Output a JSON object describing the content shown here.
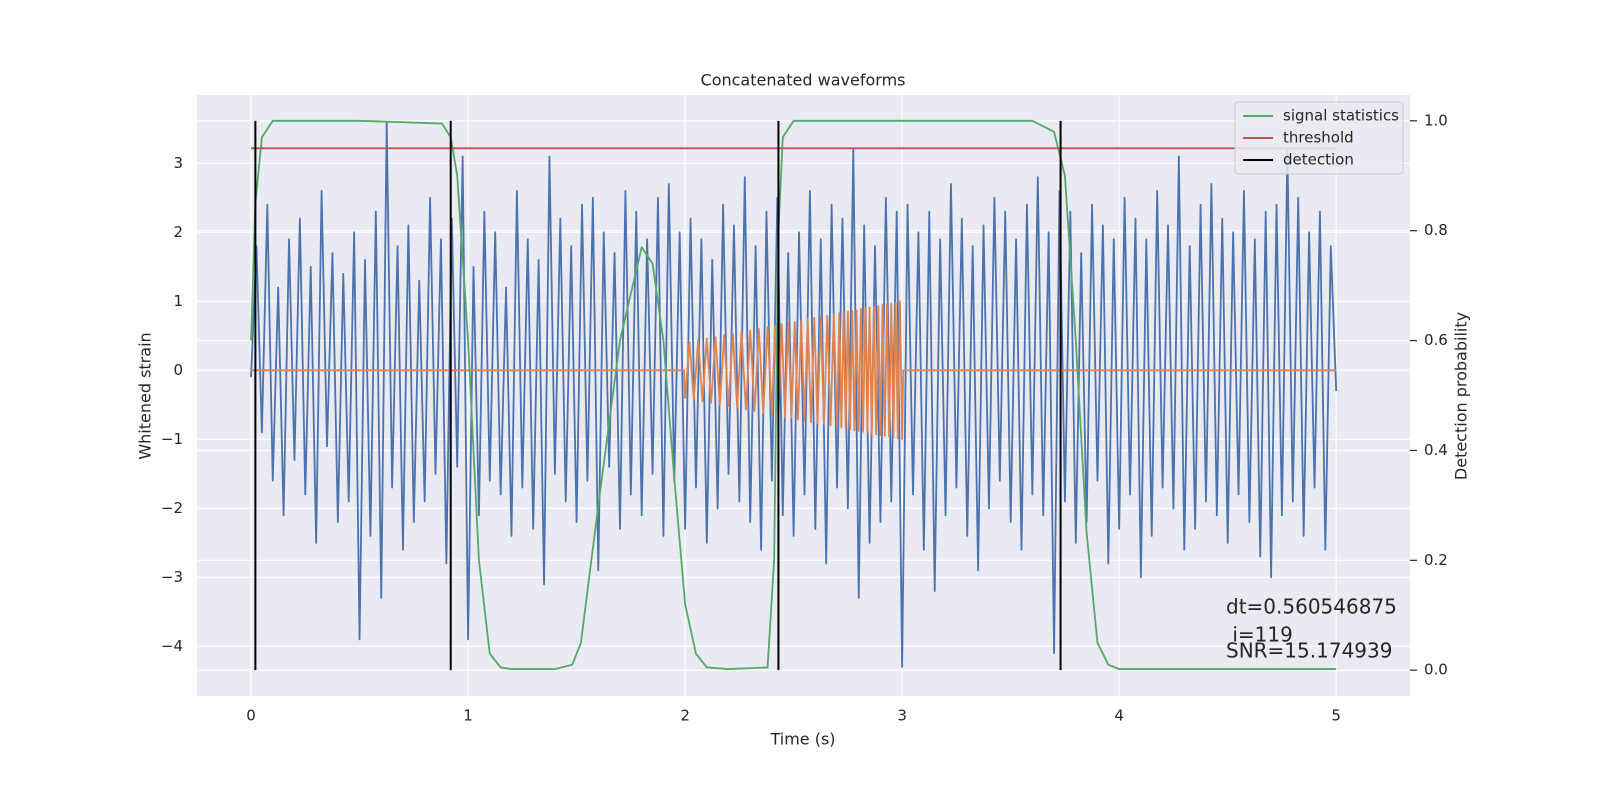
{
  "chart_data": {
    "type": "line",
    "title": "Concatenated waveforms",
    "xlabel": "Time (s)",
    "ylabel": "Whitened strain",
    "y2label": "Detection probability",
    "xlim": [
      -0.249,
      5.34
    ],
    "ylim": [
      -4.72,
      3.99
    ],
    "y2lim": [
      -0.047,
      1.047
    ],
    "xticks": [
      0,
      1,
      2,
      3,
      4,
      5
    ],
    "yticks": [
      {
        "value": -4,
        "label": "−4"
      },
      {
        "value": -3,
        "label": "−3"
      },
      {
        "value": -2,
        "label": "−2"
      },
      {
        "value": -1,
        "label": "−1"
      },
      0,
      1,
      2,
      3
    ],
    "y2ticks": [
      {
        "value": 0,
        "label": "0.0"
      },
      {
        "value": 0.2,
        "label": "0.2"
      },
      {
        "value": 0.4,
        "label": "0.4"
      },
      {
        "value": 0.6,
        "label": "0.6"
      },
      {
        "value": 0.8,
        "label": "0.8"
      },
      {
        "value": 1,
        "label": "1.0"
      }
    ],
    "grid": true,
    "legend": "upper right",
    "background": "#eaeaf2",
    "annotation_lines": [
      "dt=0.560546875",
      " i=119",
      "SNR=15.174939"
    ],
    "series": [
      {
        "color": "#4c72b0",
        "x": [
          0,
          0.025,
          0.05,
          0.075,
          0.1,
          0.125,
          0.15,
          0.175,
          0.2,
          0.225,
          0.25,
          0.275,
          0.3,
          0.325,
          0.35,
          0.375,
          0.4,
          0.425,
          0.45,
          0.475,
          0.5,
          0.525,
          0.55,
          0.575,
          0.6,
          0.625,
          0.65,
          0.675,
          0.7,
          0.725,
          0.75,
          0.775,
          0.8,
          0.825,
          0.85,
          0.875,
          0.9,
          0.925,
          0.95,
          0.975,
          1,
          1.025,
          1.05,
          1.075,
          1.1,
          1.125,
          1.15,
          1.175,
          1.2,
          1.225,
          1.25,
          1.275,
          1.3,
          1.325,
          1.35,
          1.375,
          1.4,
          1.425,
          1.45,
          1.475,
          1.5,
          1.525,
          1.55,
          1.575,
          1.6,
          1.625,
          1.65,
          1.675,
          1.7,
          1.725,
          1.75,
          1.775,
          1.8,
          1.825,
          1.85,
          1.875,
          1.9,
          1.925,
          1.95,
          1.975,
          2,
          2.025,
          2.05,
          2.075,
          2.1,
          2.125,
          2.15,
          2.175,
          2.2,
          2.225,
          2.25,
          2.275,
          2.3,
          2.325,
          2.35,
          2.375,
          2.4,
          2.425,
          2.45,
          2.475,
          2.5,
          2.525,
          2.55,
          2.575,
          2.6,
          2.625,
          2.65,
          2.675,
          2.7,
          2.725,
          2.75,
          2.775,
          2.8,
          2.825,
          2.85,
          2.875,
          2.9,
          2.925,
          2.95,
          2.975,
          3,
          3.025,
          3.05,
          3.075,
          3.1,
          3.125,
          3.15,
          3.175,
          3.2,
          3.225,
          3.25,
          3.275,
          3.3,
          3.325,
          3.35,
          3.375,
          3.4,
          3.425,
          3.45,
          3.475,
          3.5,
          3.525,
          3.55,
          3.575,
          3.6,
          3.625,
          3.65,
          3.675,
          3.7,
          3.725,
          3.75,
          3.775,
          3.8,
          3.825,
          3.85,
          3.875,
          3.9,
          3.925,
          3.95,
          3.975,
          4,
          4.025,
          4.05,
          4.075,
          4.1,
          4.125,
          4.15,
          4.175,
          4.2,
          4.225,
          4.25,
          4.275,
          4.3,
          4.325,
          4.35,
          4.375,
          4.4,
          4.425,
          4.45,
          4.475,
          4.5,
          4.525,
          4.55,
          4.575,
          4.6,
          4.625,
          4.65,
          4.675,
          4.7,
          4.725,
          4.75,
          4.775,
          4.8,
          4.825,
          4.85,
          4.875,
          4.9,
          4.925,
          4.95,
          4.975,
          5
        ],
        "values": [
          -0.1,
          1.8,
          -0.9,
          2.4,
          -1.6,
          1.2,
          -2.1,
          1.9,
          -1.3,
          2.2,
          -1.8,
          1.5,
          -2.5,
          2.6,
          -1.1,
          1.7,
          -2.2,
          1.4,
          -1.9,
          2.0,
          -3.9,
          1.6,
          -2.4,
          2.3,
          -3.3,
          3.6,
          -1.7,
          1.8,
          -2.6,
          2.1,
          -2.2,
          1.3,
          -1.9,
          2.5,
          -1.5,
          1.9,
          -2.8,
          2.2,
          -1.4,
          3.1,
          -3.9,
          1.5,
          -2.1,
          2.3,
          -1.6,
          2.0,
          -1.8,
          1.2,
          -2.4,
          2.6,
          -1.7,
          1.9,
          -2.3,
          1.6,
          -3.1,
          3.1,
          -1.5,
          2.2,
          -1.9,
          1.8,
          -2.2,
          2.4,
          -1.6,
          2.5,
          -2.9,
          2.0,
          -1.4,
          1.7,
          -2.3,
          2.6,
          -1.8,
          2.3,
          -2.1,
          1.9,
          -1.5,
          2.5,
          -2.4,
          2.7,
          -1.6,
          2.0,
          -2.3,
          2.2,
          -1.7,
          1.9,
          -2.5,
          1.6,
          -2.0,
          2.4,
          -1.5,
          2.1,
          -1.9,
          2.8,
          -2.2,
          1.8,
          -2.6,
          2.3,
          -1.6,
          2.5,
          -2.1,
          1.7,
          -2.4,
          2.0,
          -1.8,
          2.6,
          -2.3,
          1.9,
          -2.8,
          2.4,
          -1.7,
          2.2,
          -2.0,
          3.2,
          -3.3,
          2.1,
          -2.5,
          1.8,
          -2.2,
          2.5,
          -1.9,
          2.3,
          -4.3,
          2.4,
          -1.8,
          2.0,
          -2.6,
          2.3,
          -3.2,
          1.9,
          -2.1,
          2.7,
          -1.7,
          2.2,
          -2.4,
          1.8,
          -2.9,
          2.1,
          -2.0,
          2.5,
          -1.6,
          2.3,
          -2.2,
          1.9,
          -2.6,
          2.4,
          -1.8,
          2.8,
          -2.1,
          2.0,
          -4.1,
          2.6,
          -1.9,
          2.3,
          -2.5,
          1.7,
          -2.2,
          2.4,
          -1.6,
          2.1,
          -2.8,
          1.9,
          -2.3,
          2.5,
          -1.8,
          2.2,
          -3.0,
          1.9,
          -2.4,
          2.6,
          -1.7,
          2.1,
          -2.0,
          3.1,
          -2.6,
          1.8,
          -2.3,
          2.4,
          -1.9,
          2.7,
          -2.1,
          2.2,
          -2.5,
          2.0,
          -1.8,
          2.6,
          -2.2,
          1.9,
          -2.7,
          2.3,
          -3.0,
          2.4,
          -2.1,
          3.2,
          -1.9,
          2.5,
          -2.4,
          2.0,
          -1.7,
          2.3,
          -2.6,
          1.8,
          -0.3
        ]
      },
      {
        "color": "#dd8452",
        "x": [
          0,
          1.995,
          2,
          2.02,
          2.04,
          2.06,
          2.08,
          2.1,
          2.12,
          2.14,
          2.16,
          2.18,
          2.2,
          2.22,
          2.24,
          2.26,
          2.28,
          2.3,
          2.32,
          2.34,
          2.36,
          2.38,
          2.4,
          2.415,
          2.43,
          2.445,
          2.46,
          2.475,
          2.49,
          2.505,
          2.52,
          2.535,
          2.55,
          2.565,
          2.58,
          2.595,
          2.61,
          2.625,
          2.64,
          2.655,
          2.67,
          2.685,
          2.7,
          2.71,
          2.72,
          2.73,
          2.74,
          2.75,
          2.76,
          2.77,
          2.78,
          2.79,
          2.8,
          2.81,
          2.82,
          2.83,
          2.84,
          2.85,
          2.86,
          2.87,
          2.88,
          2.89,
          2.9,
          2.91,
          2.92,
          2.93,
          2.94,
          2.95,
          2.96,
          2.97,
          2.98,
          2.99,
          3,
          3.005,
          5
        ],
        "values": [
          0,
          0,
          -0.4,
          0.41,
          -0.42,
          0.44,
          -0.45,
          0.46,
          -0.47,
          0.48,
          -0.5,
          0.51,
          -0.52,
          0.53,
          -0.54,
          0.56,
          -0.57,
          0.58,
          -0.59,
          0.6,
          -0.62,
          0.63,
          -0.64,
          0.65,
          -0.66,
          0.67,
          -0.68,
          0.69,
          -0.69,
          0.7,
          -0.71,
          0.72,
          -0.73,
          0.74,
          -0.75,
          0.76,
          -0.77,
          0.78,
          -0.78,
          0.79,
          -0.8,
          0.81,
          -0.82,
          0.83,
          -0.83,
          0.84,
          -0.84,
          0.85,
          -0.86,
          0.86,
          -0.87,
          0.87,
          -0.88,
          0.89,
          -0.89,
          0.9,
          -0.9,
          0.91,
          -0.92,
          0.92,
          -0.93,
          0.93,
          -0.94,
          0.95,
          -0.95,
          0.96,
          -0.96,
          0.97,
          -0.98,
          0.98,
          -0.99,
          1.0,
          -1.0,
          0,
          0
        ]
      },
      {
        "name": "signal statistics",
        "color": "#55a868",
        "axis": "y2",
        "x": [
          0,
          0.02,
          0.05,
          0.1,
          0.5,
          0.88,
          0.92,
          0.95,
          1.0,
          1.05,
          1.1,
          1.15,
          1.2,
          1.4,
          1.48,
          1.52,
          1.6,
          1.7,
          1.8,
          1.85,
          1.9,
          1.95,
          2.0,
          2.05,
          2.1,
          2.2,
          2.38,
          2.41,
          2.43,
          2.45,
          2.5,
          3.6,
          3.7,
          3.75,
          3.8,
          3.85,
          3.9,
          3.95,
          4.0,
          5.0
        ],
        "values": [
          0.6,
          0.85,
          0.97,
          1.0,
          1.0,
          0.995,
          0.97,
          0.9,
          0.6,
          0.2,
          0.03,
          0.005,
          0.002,
          0.002,
          0.01,
          0.05,
          0.3,
          0.6,
          0.77,
          0.74,
          0.6,
          0.35,
          0.12,
          0.03,
          0.005,
          0.002,
          0.005,
          0.2,
          0.8,
          0.97,
          1.0,
          1.0,
          0.98,
          0.9,
          0.6,
          0.25,
          0.05,
          0.01,
          0.002,
          0.002
        ]
      },
      {
        "name": "threshold",
        "color": "#c44e52",
        "axis": "y2",
        "x": [
          0,
          5
        ],
        "values": [
          0.95,
          0.95
        ]
      },
      {
        "name": "detection",
        "color": "#000000",
        "axis": "y2",
        "type": "vlines",
        "x": [
          0.02,
          0.92,
          2.43,
          3.73
        ],
        "ymin": 0,
        "ymax": 1
      }
    ]
  }
}
